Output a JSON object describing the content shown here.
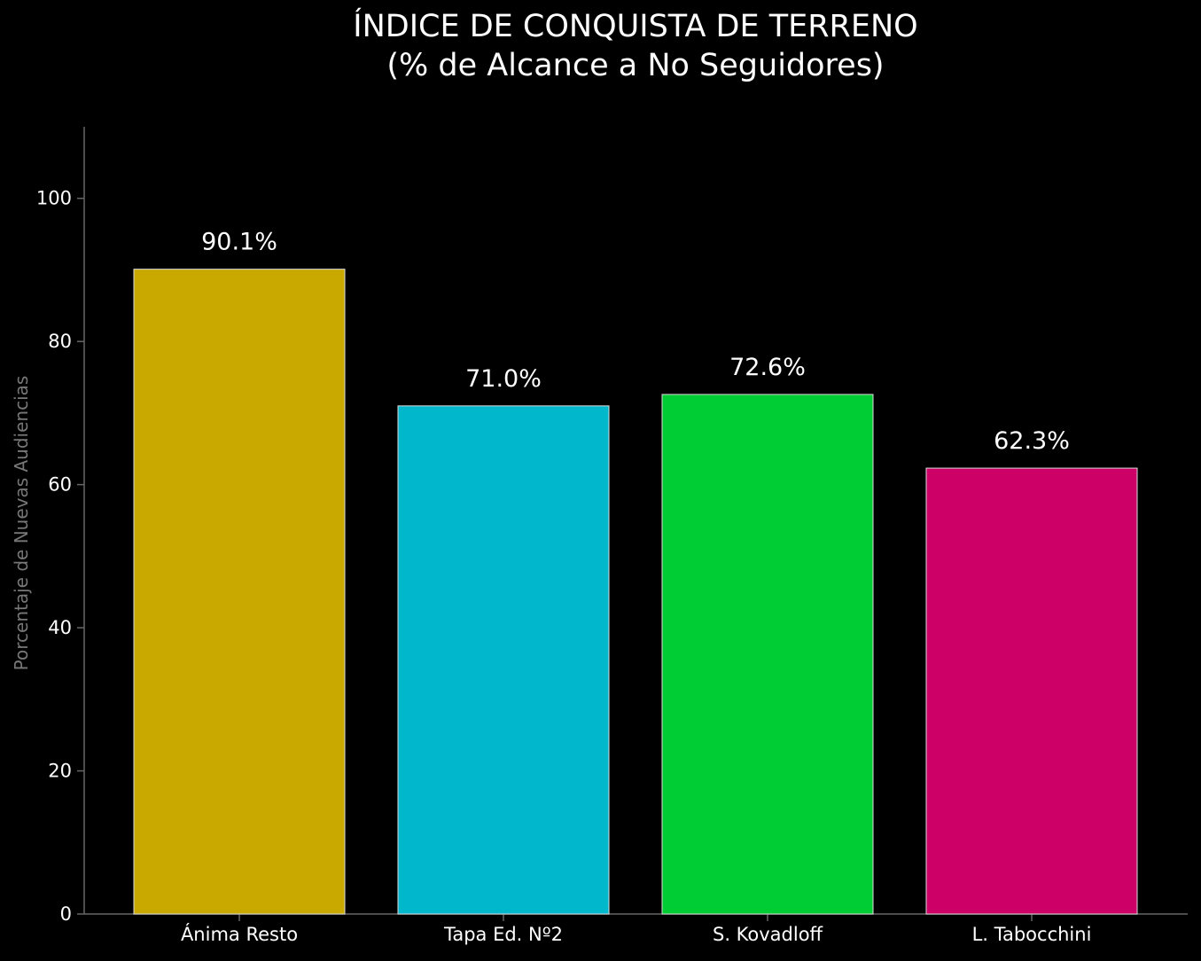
{
  "chart_data": {
    "type": "bar",
    "title_line1": "ÍNDICE DE CONQUISTA DE TERRENO",
    "title_line2": "(% de Alcance a No Seguidores)",
    "xlabel": "",
    "ylabel": "Porcentaje de Nuevas Audiencias",
    "ylim": [
      0,
      110
    ],
    "yticks": [
      0,
      20,
      40,
      60,
      80,
      100
    ],
    "categories": [
      "Ánima Resto",
      "Tapa Ed. Nº2",
      "S. Kovadloff",
      "L. Tabocchini"
    ],
    "values": [
      90.1,
      71.0,
      72.6,
      62.3
    ],
    "value_labels": [
      "90.1%",
      "71.0%",
      "72.6%",
      "62.3%"
    ],
    "colors": [
      "#c9a800",
      "#00b7cc",
      "#00cc33",
      "#cc0066"
    ],
    "grid": false,
    "legend": "none",
    "background": "#000000",
    "text_color": "#ffffff",
    "axis_color": "#666666",
    "ylabel_color": "#777777"
  }
}
